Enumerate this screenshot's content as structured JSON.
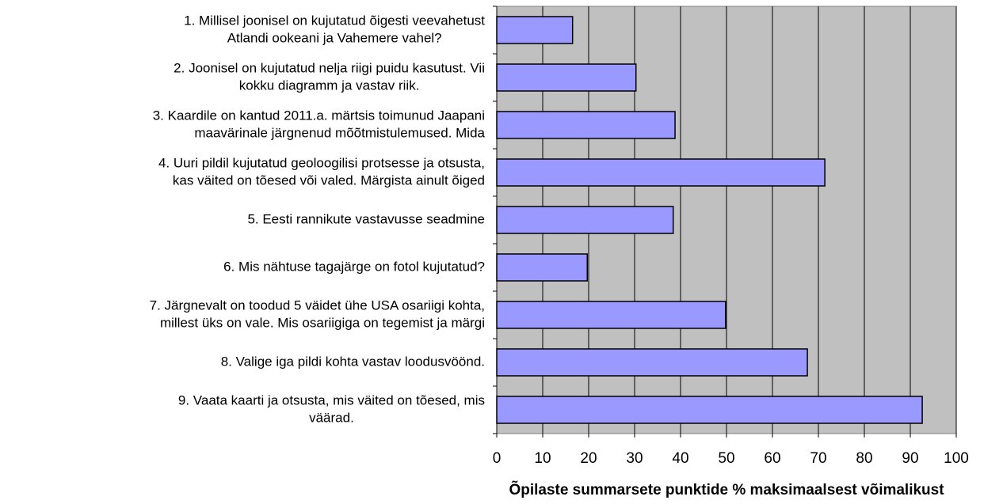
{
  "chart_data": {
    "type": "bar",
    "orientation": "horizontal",
    "xlabel": "Õpilaste summarsete punktide % maksimaalsest võimalikust",
    "categories": [
      [
        "1. Millisel joonisel on kujutatud õigesti veevahetust",
        "Atlandi ookeani ja Vahemere vahel?"
      ],
      [
        "2. Joonisel on kujutatud nelja riigi puidu kasutust. Vii",
        "kokku diagramm ja vastav riik."
      ],
      [
        "3. Kaardile on kantud 2011.a. märtsis toimunud Jaapani",
        "maavärinale järgnenud mõõtmistulemused. Mida"
      ],
      [
        "4. Uuri pildil kujutatud geoloogilisi protsesse ja otsusta,",
        "kas väited on tõesed või valed. Märgista ainult õiged"
      ],
      [
        "5. Eesti rannikute vastavusse seadmine"
      ],
      [
        "6. Mis nähtuse tagajärge on fotol kujutatud?"
      ],
      [
        "7. Järgnevalt on toodud 5 väidet ühe USA osariigi kohta,",
        "millest üks on vale. Mis osariigiga on tegemist ja märgi"
      ],
      [
        "8. Valige iga pildi kohta vastav loodusvöönd."
      ],
      [
        "9. Vaata kaarti ja otsusta, mis väited on tõesed, mis",
        "väärad."
      ]
    ],
    "values": [
      16.5,
      30.3,
      38.8,
      71.4,
      38.4,
      19.7,
      49.8,
      67.6,
      92.6
    ],
    "color": "#9999ff",
    "xlim": [
      0,
      100
    ],
    "xticks": [
      0,
      10,
      20,
      30,
      40,
      50,
      60,
      70,
      80,
      90,
      100
    ],
    "grid": true
  }
}
